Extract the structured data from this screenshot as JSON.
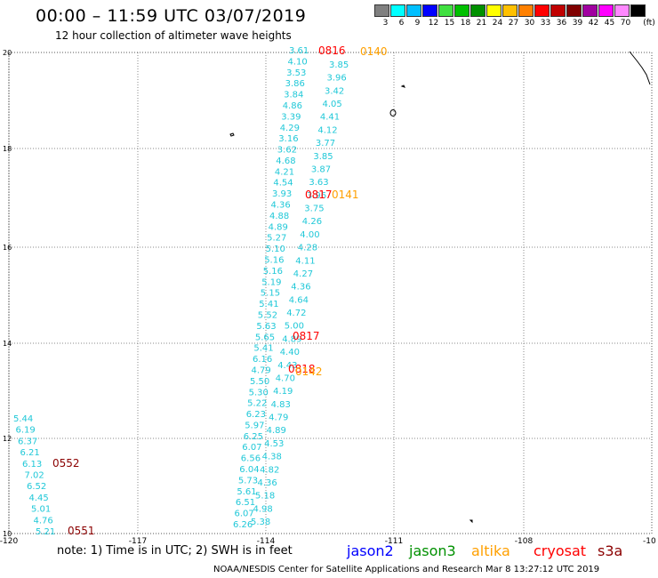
{
  "header": {
    "title": "00:00 – 11:59 UTC 03/07/2019",
    "subtitle": "12 hour collection of altimeter wave heights"
  },
  "legend": {
    "unit": "(ft)",
    "bins": [
      {
        "label": "3",
        "color": "#808080"
      },
      {
        "label": "6",
        "color": "#00ffff"
      },
      {
        "label": "9",
        "color": "#00bfff"
      },
      {
        "label": "12",
        "color": "#0000ff"
      },
      {
        "label": "15",
        "color": "#40e040"
      },
      {
        "label": "18",
        "color": "#00c000"
      },
      {
        "label": "21",
        "color": "#009000"
      },
      {
        "label": "24",
        "color": "#ffff00"
      },
      {
        "label": "27",
        "color": "#ffc000"
      },
      {
        "label": "30",
        "color": "#ff8000"
      },
      {
        "label": "33",
        "color": "#ff0000"
      },
      {
        "label": "36",
        "color": "#c00000"
      },
      {
        "label": "39",
        "color": "#800000"
      },
      {
        "label": "42",
        "color": "#a000a0"
      },
      {
        "label": "45",
        "color": "#ff00ff"
      },
      {
        "label": "70",
        "color": "#ff88ff"
      },
      {
        "label": "",
        "color": "#000000"
      }
    ]
  },
  "axes": {
    "lon_labels": [
      "-120",
      "-117",
      "-114",
      "-111",
      "-108",
      "-10"
    ],
    "lat_labels": [
      "20",
      "18",
      "16",
      "14",
      "12",
      "10"
    ]
  },
  "track_colors": {
    "wave": "#20c8d8",
    "jason2": "#0000ff",
    "jason3": "#009000",
    "altika": "#ffa000",
    "cryosat": "#ff0000",
    "s3a": "#8b0000"
  },
  "track_a_values": [
    "3.61",
    "4.10",
    "3.53",
    "3.86",
    "3.84",
    "4.86",
    "3.39",
    "4.29",
    "3.16",
    "3.62",
    "4.68",
    "4.21",
    "4.54",
    "3.93",
    "4.36",
    "4.88",
    "4.89",
    "5.27",
    "5.10",
    "5.16",
    "5.16",
    "5.19",
    "5.15",
    "5.41",
    "5.52",
    "5.63",
    "5.65",
    "5.41",
    "6.16",
    "4.79",
    "5.50",
    "5.30",
    "5.22",
    "6.23",
    "5.97",
    "6.25",
    "6.07",
    "6.56",
    "6.04",
    "5.73",
    "5.61",
    "6.51",
    "6.07",
    "6.26"
  ],
  "track_b_values": [
    "3.85",
    "3.96",
    "3.42",
    "4.05",
    "4.41",
    "4.12",
    "3.77",
    "3.85",
    "3.87",
    "3.63",
    "3.96",
    "3.75",
    "4.26",
    "4.00",
    "4.28",
    "4.11",
    "4.27",
    "4.36",
    "4.64",
    "4.72",
    "5.00",
    "4.89",
    "4.40",
    "4.43",
    "4.70",
    "4.19",
    "4.83",
    "4.79",
    "4.89",
    "4.53",
    "4.38",
    "4.82",
    "4.36",
    "5.18",
    "4.98",
    "5.38"
  ],
  "track_c_values": [
    "5.44",
    "6.19",
    "6.37",
    "6.21",
    "6.13",
    "7.02",
    "6.52",
    "4.45",
    "5.01",
    "4.76",
    "5.21"
  ],
  "time_tags": [
    {
      "text": "0816",
      "sat": "cryosat"
    },
    {
      "text": "0140",
      "sat": "altika"
    },
    {
      "text": "0817",
      "sat": "cryosat"
    },
    {
      "text": "0141",
      "sat": "altika"
    },
    {
      "text": "0817",
      "sat": "cryosat"
    },
    {
      "text": "0818",
      "sat": "cryosat"
    },
    {
      "text": "0142",
      "sat": "altika"
    },
    {
      "text": "0552",
      "sat": "s3a"
    },
    {
      "text": "0551",
      "sat": "s3a"
    }
  ],
  "footer": {
    "note": "note:  1) Time is in UTC;  2) SWH is in feet",
    "satellites": [
      {
        "name": "jason2",
        "color": "#0000ff"
      },
      {
        "name": "jason3",
        "color": "#009000"
      },
      {
        "name": "altika",
        "color": "#ffa000"
      },
      {
        "name": "cryosat",
        "color": "#ff0000"
      },
      {
        "name": "s3a",
        "color": "#8b0000"
      }
    ],
    "credit": "NOAA/NESDIS Center for Satellite Applications and Research    Mar  8 13:27:12 UTC 2019"
  }
}
